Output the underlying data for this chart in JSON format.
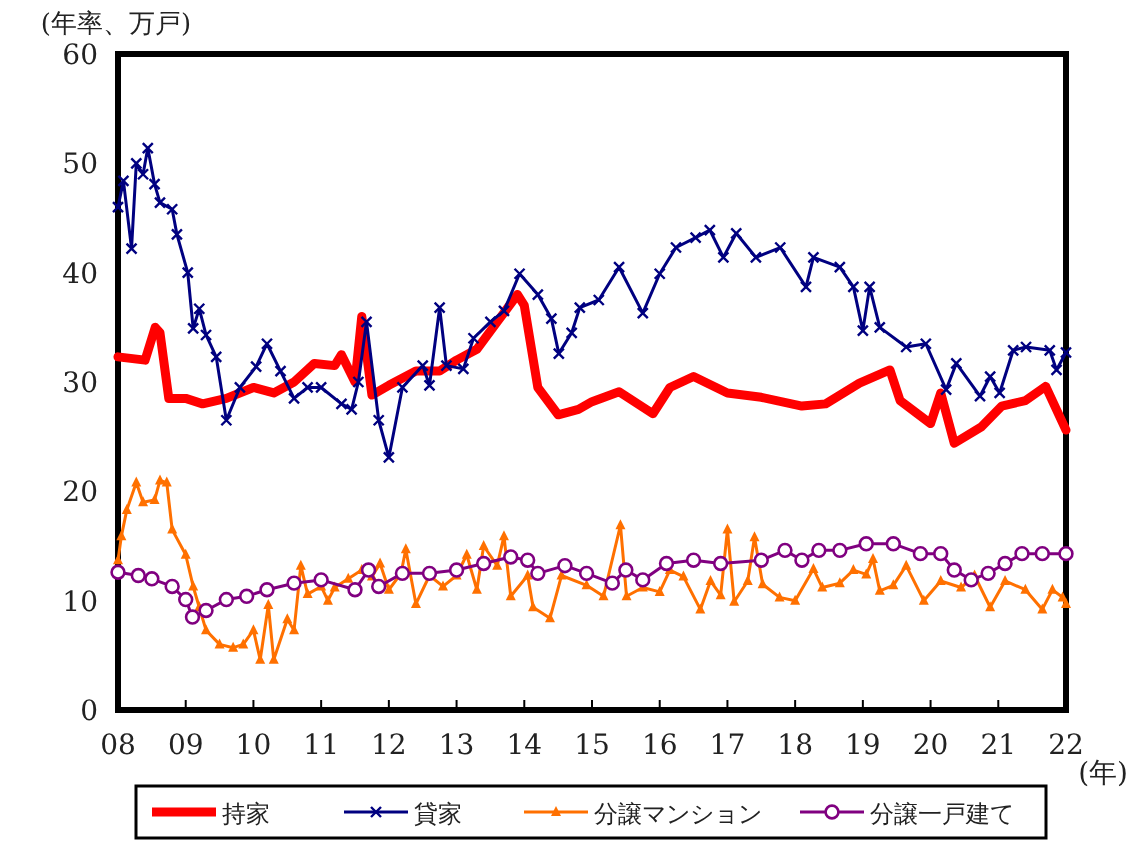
{
  "chart_data": {
    "type": "line",
    "xlabel": "(年)",
    "ylabel": "(年率、万戸)",
    "xlim": [
      2008,
      2022
    ],
    "xticks": [
      {
        "value": 2008,
        "label": "08"
      },
      {
        "value": 2009,
        "label": "09"
      },
      {
        "value": 2010,
        "label": "10"
      },
      {
        "value": 2011,
        "label": "11"
      },
      {
        "value": 2012,
        "label": "12"
      },
      {
        "value": 2013,
        "label": "13"
      },
      {
        "value": 2014,
        "label": "14"
      },
      {
        "value": 2015,
        "label": "15"
      },
      {
        "value": 2016,
        "label": "16"
      },
      {
        "value": 2017,
        "label": "17"
      },
      {
        "value": 2018,
        "label": "18"
      },
      {
        "value": 2019,
        "label": "19"
      },
      {
        "value": 2020,
        "label": "20"
      },
      {
        "value": 2021,
        "label": "21"
      },
      {
        "value": 2022,
        "label": "22"
      }
    ],
    "ylim": [
      0,
      60
    ],
    "yticks": [
      0,
      10,
      20,
      30,
      40,
      50,
      60
    ],
    "grid": false,
    "legend": "bottom",
    "series": [
      {
        "name": "持家",
        "color": "#ff0000",
        "marker": "none",
        "x": [
          2008,
          2008.4,
          2008.55,
          2008.62,
          2008.75,
          2009,
          2009.25,
          2009.6,
          2010,
          2010.3,
          2010.6,
          2010.9,
          2011.2,
          2011.3,
          2011.5,
          2011.6,
          2011.75,
          2012,
          2012.4,
          2012.75,
          2013,
          2013.3,
          2013.6,
          2013.9,
          2014,
          2014.2,
          2014.5,
          2014.8,
          2015,
          2015.4,
          2015.9,
          2016.15,
          2016.5,
          2017,
          2017.5,
          2018.1,
          2018.45,
          2018.95,
          2019.4,
          2019.55,
          2020,
          2020.15,
          2020.35,
          2020.75,
          2021.05,
          2021.4,
          2021.7,
          2022
        ],
        "values": [
          32.3,
          32,
          35,
          34.5,
          28.5,
          28.5,
          28,
          28.5,
          29.5,
          29,
          30,
          31.7,
          31.5,
          32.5,
          30,
          36,
          28.8,
          29.7,
          31,
          31,
          32,
          33,
          35.5,
          38,
          37,
          29.5,
          27,
          27.5,
          28.2,
          29.1,
          27.1,
          29.5,
          30.5,
          29,
          28.6,
          27.8,
          28,
          29.9,
          31.1,
          28.3,
          26.2,
          29,
          24.4,
          25.9,
          27.8,
          28.3,
          29.6,
          25.6
        ]
      },
      {
        "name": "貸家",
        "color": "#000080",
        "marker": "cross",
        "x": [
          2008,
          2008.08,
          2008.2,
          2008.27,
          2008.37,
          2008.44,
          2008.54,
          2008.62,
          2008.8,
          2008.87,
          2009.03,
          2009.11,
          2009.2,
          2009.3,
          2009.45,
          2009.6,
          2009.8,
          2010.04,
          2010.2,
          2010.4,
          2010.6,
          2010.8,
          2011,
          2011.3,
          2011.45,
          2011.55,
          2011.67,
          2011.85,
          2012,
          2012.2,
          2012.5,
          2012.6,
          2012.75,
          2012.85,
          2013.1,
          2013.25,
          2013.5,
          2013.7,
          2013.93,
          2014.2,
          2014.4,
          2014.51,
          2014.7,
          2014.82,
          2015.1,
          2015.4,
          2015.75,
          2016,
          2016.24,
          2016.53,
          2016.74,
          2016.94,
          2017.13,
          2017.42,
          2017.78,
          2018.16,
          2018.27,
          2018.66,
          2018.86,
          2019,
          2019.1,
          2019.25,
          2019.64,
          2019.93,
          2020.23,
          2020.38,
          2020.73,
          2020.88,
          2021.02,
          2021.22,
          2021.41,
          2021.76,
          2021.86,
          2022
        ],
        "values": [
          46,
          48.4,
          42.2,
          50,
          49,
          51.4,
          48.1,
          46.4,
          45.8,
          43.5,
          40,
          34.9,
          36.7,
          34.3,
          32.3,
          26.5,
          29.5,
          31.4,
          33.5,
          31,
          28.5,
          29.5,
          29.5,
          28,
          27.5,
          30,
          35.5,
          26.5,
          23.1,
          29.5,
          31.5,
          29.7,
          36.8,
          31.5,
          31.2,
          34,
          35.5,
          36.5,
          39.9,
          38,
          35.8,
          32.6,
          34.5,
          36.8,
          37.5,
          40.5,
          36.3,
          39.9,
          42.3,
          43.2,
          43.9,
          41.4,
          43.6,
          41.4,
          42.3,
          38.7,
          41.4,
          40.5,
          38.7,
          34.7,
          38.7,
          35,
          33.2,
          33.5,
          29.3,
          31.7,
          28.7,
          30.5,
          29,
          32.9,
          33.2,
          32.9,
          31.1,
          32.7
        ]
      },
      {
        "name": "分譲マンション",
        "color": "#ff7000",
        "marker": "triangle",
        "x": [
          2008,
          2008.05,
          2008.13,
          2008.27,
          2008.37,
          2008.54,
          2008.62,
          2008.72,
          2008.8,
          2009,
          2009.11,
          2009.2,
          2009.3,
          2009.5,
          2009.7,
          2009.85,
          2010,
          2010.1,
          2010.22,
          2010.3,
          2010.5,
          2010.6,
          2010.7,
          2010.8,
          2011,
          2011.1,
          2011.2,
          2011.4,
          2011.6,
          2011.75,
          2011.87,
          2012,
          2012.18,
          2012.25,
          2012.4,
          2012.6,
          2012.8,
          2013,
          2013.15,
          2013.3,
          2013.4,
          2013.6,
          2013.7,
          2013.8,
          2014.05,
          2014.13,
          2014.38,
          2014.55,
          2014.92,
          2015.17,
          2015.42,
          2015.51,
          2015.75,
          2016,
          2016.15,
          2016.35,
          2016.6,
          2016.75,
          2016.9,
          2017,
          2017.1,
          2017.3,
          2017.4,
          2017.52,
          2017.77,
          2018,
          2018.27,
          2018.4,
          2018.66,
          2018.86,
          2019.05,
          2019.15,
          2019.25,
          2019.45,
          2019.64,
          2019.9,
          2020.15,
          2020.45,
          2020.65,
          2020.88,
          2021.1,
          2021.4,
          2021.65,
          2021.8,
          2021.95,
          2022
        ],
        "values": [
          13.7,
          15.9,
          18.3,
          20.8,
          19,
          19.2,
          21,
          20.8,
          16.5,
          14.2,
          11.3,
          9.4,
          7.3,
          6,
          5.7,
          6,
          7.3,
          4.6,
          9.6,
          4.6,
          8.3,
          7.3,
          13.2,
          10.6,
          11.3,
          10,
          11.2,
          12,
          12.8,
          12.2,
          13.4,
          11,
          12.5,
          14.7,
          9.7,
          12.3,
          11.3,
          12.3,
          14.2,
          11,
          15,
          13.2,
          15.9,
          10.4,
          12.3,
          9.4,
          8.4,
          12.3,
          11.4,
          10.4,
          16.9,
          10.4,
          11.2,
          10.8,
          12.8,
          12.2,
          9.2,
          11.8,
          10.5,
          16.5,
          9.9,
          11.8,
          15.8,
          11.5,
          10.3,
          10,
          12.9,
          11.2,
          11.6,
          12.8,
          12.4,
          13.8,
          10.9,
          11.4,
          13.2,
          10,
          11.8,
          11.2,
          12.3,
          9.4,
          11.8,
          11,
          9.2,
          11,
          10.3,
          9.7
        ]
      },
      {
        "name": "分譲一戸建て",
        "color": "#800080",
        "marker": "circle",
        "x": [
          2008,
          2008.3,
          2008.5,
          2008.8,
          2009,
          2009.1,
          2009.3,
          2009.6,
          2009.9,
          2010.2,
          2010.6,
          2011,
          2011.5,
          2011.7,
          2011.85,
          2012.2,
          2012.6,
          2013,
          2013.4,
          2013.8,
          2014.05,
          2014.2,
          2014.6,
          2014.92,
          2015.3,
          2015.5,
          2015.75,
          2016.1,
          2016.5,
          2016.9,
          2017.5,
          2017.85,
          2018.1,
          2018.35,
          2018.66,
          2019.05,
          2019.45,
          2019.85,
          2020.15,
          2020.35,
          2020.6,
          2020.85,
          2021.1,
          2021.35,
          2021.65,
          2022
        ],
        "values": [
          12.6,
          12.3,
          12,
          11.3,
          10.1,
          8.5,
          9.1,
          10.1,
          10.4,
          11,
          11.6,
          11.9,
          11,
          12.8,
          11.3,
          12.5,
          12.5,
          12.8,
          13.4,
          14,
          13.7,
          12.5,
          13.2,
          12.5,
          11.6,
          12.8,
          11.9,
          13.4,
          13.7,
          13.4,
          13.7,
          14.6,
          13.7,
          14.6,
          14.6,
          15.2,
          15.2,
          14.3,
          14.3,
          12.8,
          11.9,
          12.5,
          13.4,
          14.3,
          14.3,
          14.3
        ]
      }
    ]
  }
}
